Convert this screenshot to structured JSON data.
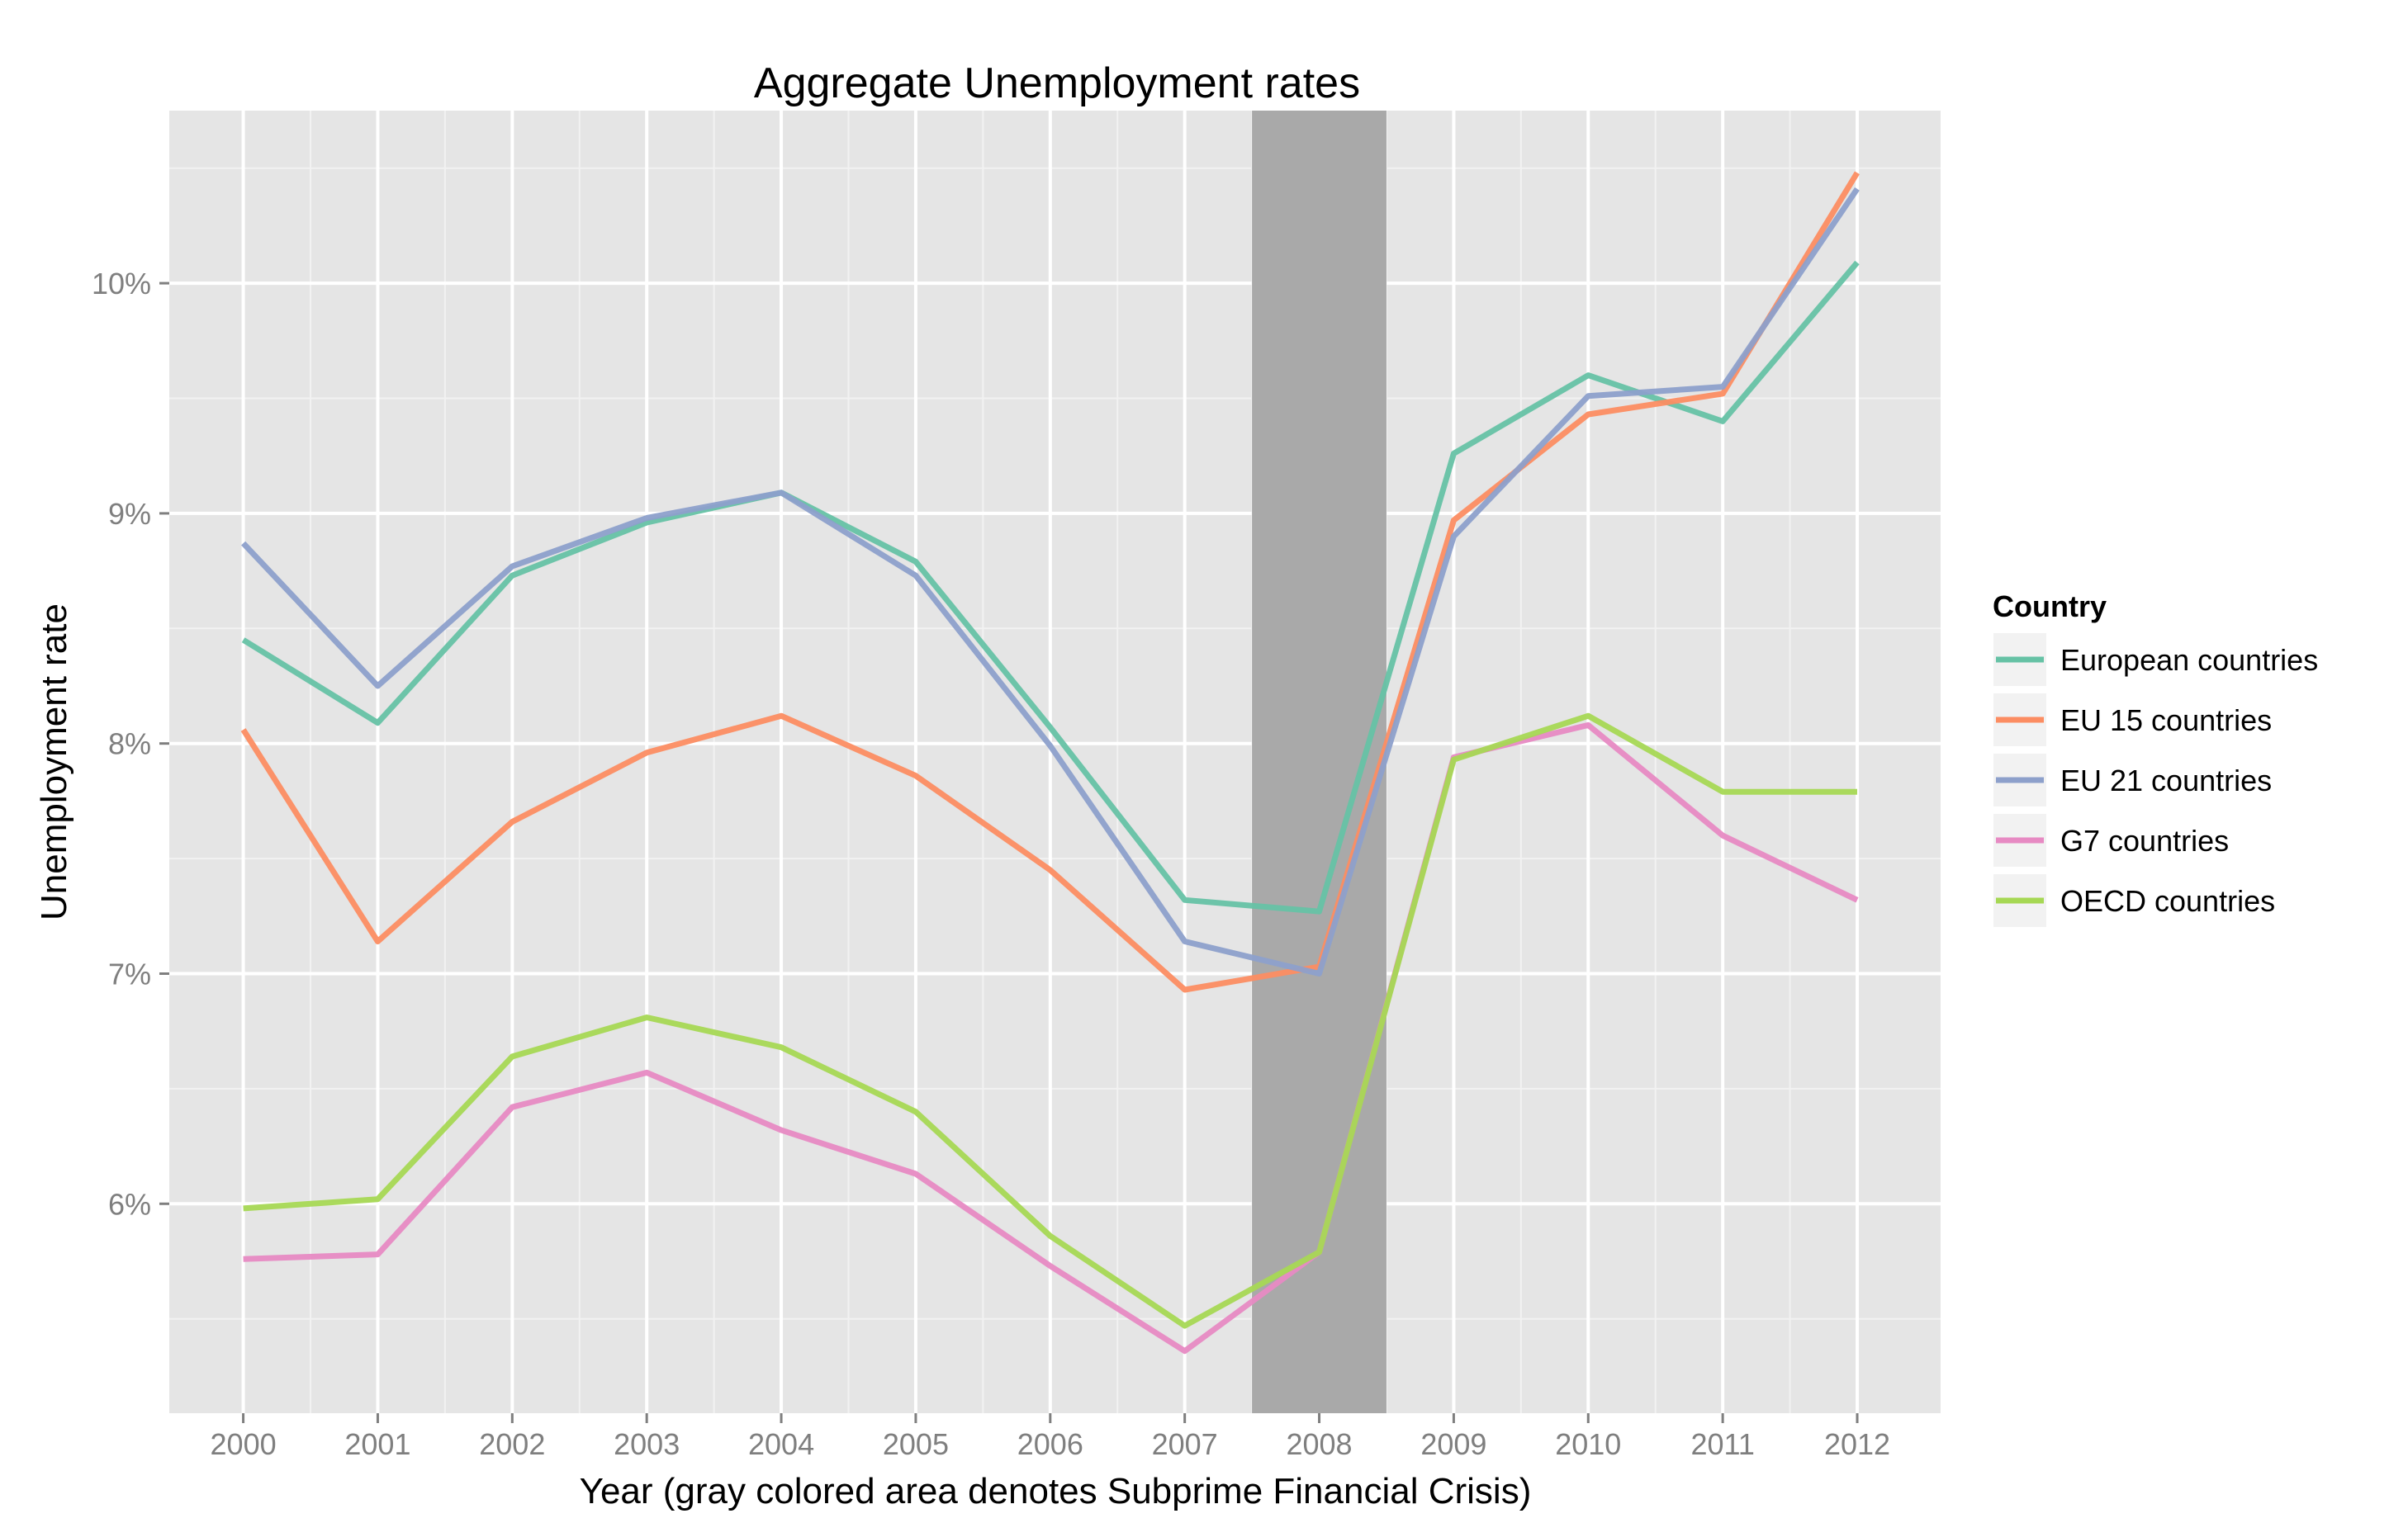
{
  "chart_data": {
    "type": "line",
    "title": "Aggregate Unemployment rates",
    "xlabel": "Year (gray colored area denotes Subprime Financial Crisis)",
    "ylabel": "Unemployment rate",
    "x": [
      2000,
      2001,
      2002,
      2003,
      2004,
      2005,
      2006,
      2007,
      2008,
      2009,
      2010,
      2011,
      2012
    ],
    "x_tick_labels": [
      "2000",
      "2001",
      "2002",
      "2003",
      "2004",
      "2005",
      "2006",
      "2007",
      "2008",
      "2009",
      "2010",
      "2011",
      "2012"
    ],
    "y_tick_labels": [
      "6%",
      "7%",
      "8%",
      "9%",
      "10%"
    ],
    "y_ticks": [
      6,
      7,
      8,
      9,
      10
    ],
    "xlim": [
      1999.45,
      2012.62
    ],
    "ylim": [
      5.09,
      10.75
    ],
    "grid": true,
    "legend_position": "right",
    "legend_title": "Country",
    "shaded_region": {
      "x_start": 2007.5,
      "x_end": 2008.5,
      "color": "#a9a9a9"
    },
    "series": [
      {
        "name": "European countries",
        "color": "#66c2a5",
        "values": [
          8.45,
          8.09,
          8.73,
          8.96,
          9.09,
          8.79,
          8.07,
          7.32,
          7.27,
          9.26,
          9.6,
          9.4,
          10.09
        ]
      },
      {
        "name": "EU 15 countries",
        "color": "#fc8d62",
        "values": [
          8.06,
          7.14,
          7.66,
          7.96,
          8.12,
          7.86,
          7.45,
          6.93,
          7.03,
          8.97,
          9.43,
          9.52,
          10.48
        ]
      },
      {
        "name": "EU 21 countries",
        "color": "#8da0cb",
        "values": [
          8.87,
          8.25,
          8.77,
          8.98,
          9.09,
          8.73,
          7.99,
          7.14,
          7.0,
          8.9,
          9.51,
          9.55,
          10.41
        ]
      },
      {
        "name": "G7 countries",
        "color": "#e78ac3",
        "values": [
          5.76,
          5.78,
          6.42,
          6.57,
          6.32,
          6.13,
          5.73,
          5.36,
          5.79,
          7.94,
          8.08,
          7.6,
          7.32
        ]
      },
      {
        "name": "OECD countries",
        "color": "#a6d854",
        "values": [
          5.98,
          6.02,
          6.64,
          6.81,
          6.68,
          6.4,
          5.86,
          5.47,
          5.79,
          7.93,
          8.12,
          7.79,
          7.79
        ]
      }
    ]
  }
}
